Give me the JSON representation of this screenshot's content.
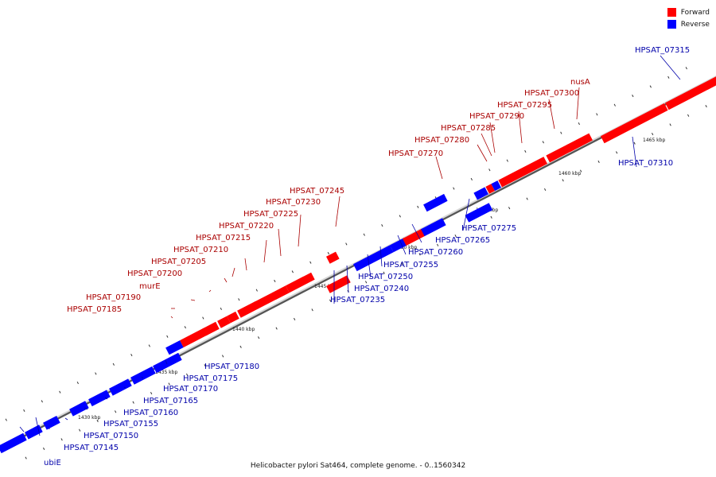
{
  "title": "Helicobacter pylori Sat464, complete genome. - 0..1560342",
  "legend": [
    {
      "label": "Forward",
      "color": "#ff0000"
    },
    {
      "label": "Reverse",
      "color": "#0000ff"
    }
  ],
  "colors": {
    "forward": "#ff0000",
    "reverse": "#0000ff",
    "line": "#999999",
    "label_forward": "#aa0000",
    "label_reverse": "#0000aa"
  },
  "genes": [
    {
      "name": "HPSAT_07145",
      "strand": "reverse"
    },
    {
      "name": "ubiE",
      "strand": "reverse"
    },
    {
      "name": "HPSAT_07150",
      "strand": "reverse"
    },
    {
      "name": "HPSAT_07155",
      "strand": "reverse"
    },
    {
      "name": "HPSAT_07160",
      "strand": "reverse"
    },
    {
      "name": "HPSAT_07165",
      "strand": "reverse"
    },
    {
      "name": "HPSAT_07170",
      "strand": "reverse"
    },
    {
      "name": "HPSAT_07175",
      "strand": "reverse"
    },
    {
      "name": "HPSAT_07180",
      "strand": "reverse"
    },
    {
      "name": "HPSAT_07185",
      "strand": "forward"
    },
    {
      "name": "HPSAT_07190",
      "strand": "forward"
    },
    {
      "name": "murE",
      "strand": "forward"
    },
    {
      "name": "HPSAT_07200",
      "strand": "forward"
    },
    {
      "name": "HPSAT_07205",
      "strand": "forward"
    },
    {
      "name": "HPSAT_07210",
      "strand": "forward"
    },
    {
      "name": "HPSAT_07215",
      "strand": "forward"
    },
    {
      "name": "HPSAT_07220",
      "strand": "forward"
    },
    {
      "name": "HPSAT_07225",
      "strand": "forward"
    },
    {
      "name": "HPSAT_07230",
      "strand": "forward"
    },
    {
      "name": "HPSAT_07235",
      "strand": "reverse"
    },
    {
      "name": "HPSAT_07240",
      "strand": "reverse"
    },
    {
      "name": "HPSAT_07245",
      "strand": "forward"
    },
    {
      "name": "HPSAT_07250",
      "strand": "reverse"
    },
    {
      "name": "HPSAT_07255",
      "strand": "reverse"
    },
    {
      "name": "HPSAT_07260",
      "strand": "reverse"
    },
    {
      "name": "HPSAT_07265",
      "strand": "reverse"
    },
    {
      "name": "HPSAT_07270",
      "strand": "forward"
    },
    {
      "name": "HPSAT_07275",
      "strand": "reverse"
    },
    {
      "name": "HPSAT_07280",
      "strand": "forward"
    },
    {
      "name": "HPSAT_07285",
      "strand": "forward"
    },
    {
      "name": "HPSAT_07290",
      "strand": "forward"
    },
    {
      "name": "HPSAT_07295",
      "strand": "forward"
    },
    {
      "name": "HPSAT_07300",
      "strand": "forward"
    },
    {
      "name": "nusA",
      "strand": "forward"
    },
    {
      "name": "HPSAT_07310",
      "strand": "reverse"
    },
    {
      "name": "HPSAT_07315",
      "strand": "reverse"
    }
  ],
  "scale_labels": [
    "1430 kbp",
    "1435 kbp",
    "1440 kbp",
    "1445 kbp",
    "1450 kbp",
    "1455 kbp",
    "1460 kbp",
    "1465 kbp"
  ]
}
